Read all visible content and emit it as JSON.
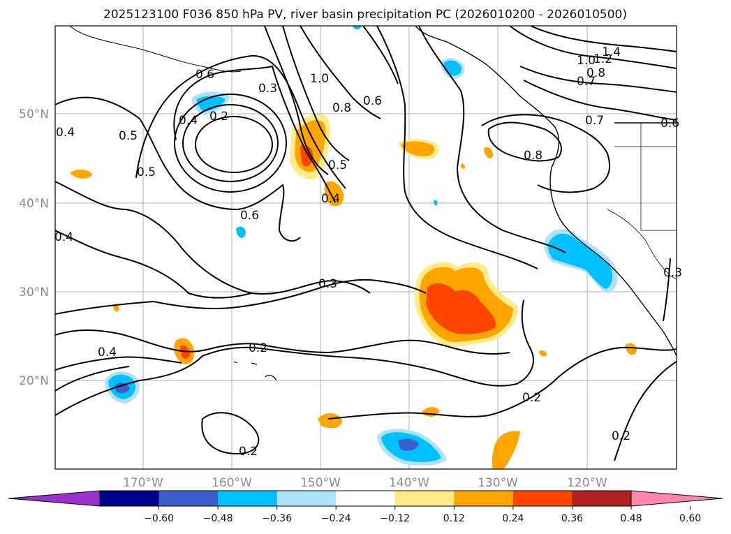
{
  "title": "2025123100 F036 850 hPa PV, river basin precipitation PC (2026010200 - 2026010500)",
  "lon_labels": [
    "170°W",
    "160°W",
    "150°W",
    "140°W",
    "130°W",
    "120°W"
  ],
  "lat_labels": [
    "50°N",
    "40°N",
    "30°N",
    "20°N"
  ],
  "colorbar": {
    "colors": [
      "#9932CC",
      "#00008B",
      "#3A5FCD",
      "#00BFFF",
      "#AEE2FA",
      "#FFFFFF",
      "#FFEB8A",
      "#FFA500",
      "#FF4500",
      "#B22222",
      "#FF88AA"
    ],
    "labels": [
      "−0.60",
      "−0.48",
      "−0.36",
      "−0.24",
      "−0.12",
      "0.12",
      "0.24",
      "0.36",
      "0.48",
      "0.60"
    ]
  },
  "contour_labels": [
    "0.6",
    "1.0",
    "0.3",
    "0.4",
    "0.2",
    "0.8",
    "0.6",
    "1.4",
    "1.2",
    "1.0",
    "0.8",
    "0.7",
    "0.7",
    "0.6",
    "0.5",
    "0.4",
    "0.5",
    "0.5",
    "0.4",
    "0.6",
    "0.8",
    "0.4",
    "0.3",
    "0.3",
    "0.4",
    "0.2",
    "0.2",
    "0.2",
    "0.2"
  ]
}
